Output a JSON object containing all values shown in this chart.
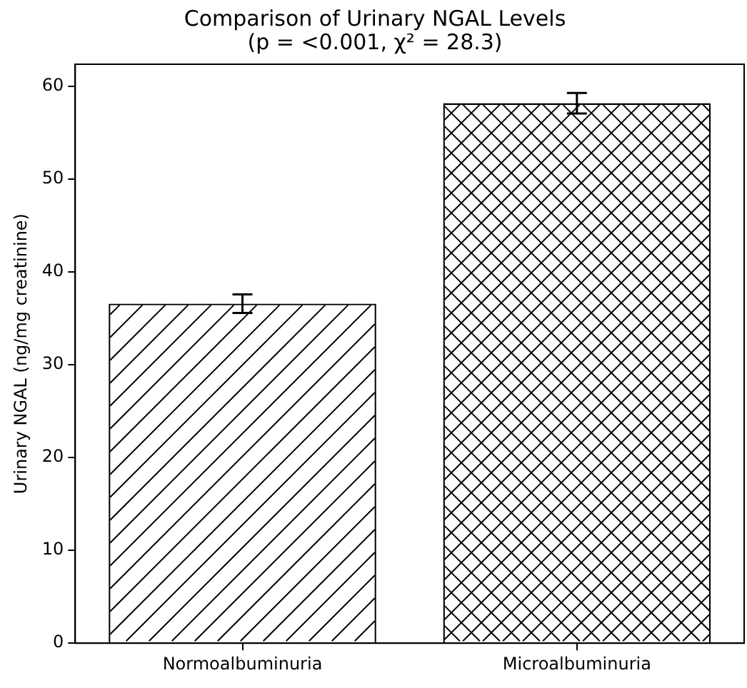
{
  "chart_data": {
    "type": "bar",
    "title": "Comparison of Urinary NGAL Levels\n(p = <0.001, χ² = 28.3)",
    "ylabel": "Urinary NGAL (ng/mg creatinine)",
    "categories": [
      "Normoalbuminuria",
      "Microalbuminuria"
    ],
    "values": [
      36.6,
      58.2
    ],
    "errors": [
      1.0,
      1.1
    ],
    "color": "#ffffff",
    "ylim": [
      0,
      62.4
    ],
    "yticks": [
      0,
      10,
      20,
      30,
      40,
      50,
      60
    ],
    "grid": false,
    "legend": false
  }
}
